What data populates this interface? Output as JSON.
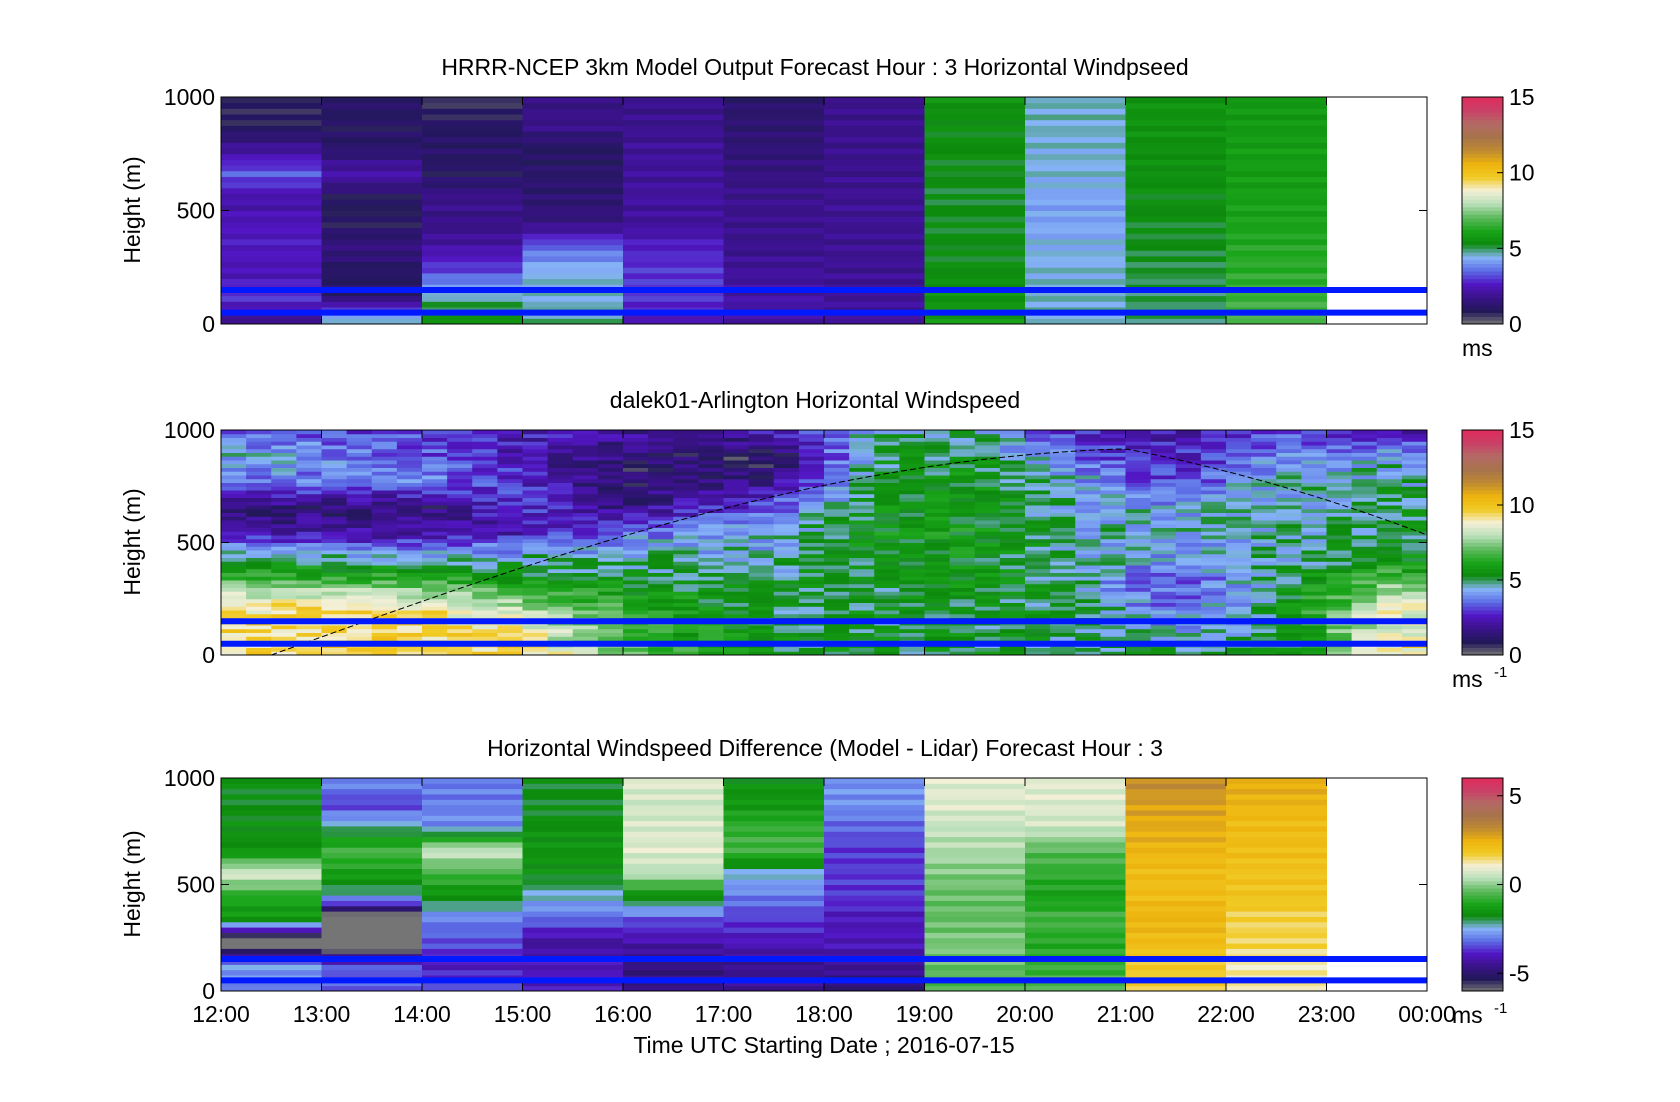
{
  "figure": {
    "xlabel": "Time UTC  Starting Date ; 2016-07-15",
    "x_ticks": [
      "12:00",
      "13:00",
      "14:00",
      "15:00",
      "16:00",
      "17:00",
      "18:00",
      "19:00",
      "20:00",
      "21:00",
      "22:00",
      "23:00",
      "00:00"
    ]
  },
  "chart_data": [
    {
      "type": "heatmap",
      "title": "HRRR-NCEP 3km Model Output   Forecast Hour : 3 Horizontal Windpseed",
      "ylabel": "Height (m)",
      "ylim": [
        0,
        1000
      ],
      "y_ticks": [
        "0",
        "500",
        "1000"
      ],
      "x_range_hours": [
        12,
        24
      ],
      "colorbar": {
        "ticks": [
          "0",
          "5",
          "10",
          "15"
        ],
        "range": [
          0,
          15
        ],
        "unit": "ms",
        "unit_sup": ""
      },
      "horizontal_lines_m": [
        50,
        150
      ],
      "model_hours": [
        12,
        13,
        14,
        15,
        16,
        17,
        18,
        19,
        20,
        21,
        22
      ],
      "model_values": [
        [
          1.8,
          3.0,
          2.4,
          2.6,
          2.5,
          2.2,
          3.4,
          2.0,
          0.8,
          0.8
        ],
        [
          4.8,
          1.2,
          1.0,
          1.6,
          0.9,
          0.9,
          2.3,
          1.2,
          1.0,
          1.2
        ],
        [
          5.6,
          4.7,
          3.2,
          2.2,
          1.7,
          1.8,
          1.0,
          1.2,
          1.0,
          0.6
        ],
        [
          4.8,
          4.5,
          4.5,
          3.5,
          1.6,
          1.3,
          1.2,
          1.0,
          1.8,
          1.6
        ],
        [
          2.4,
          3.0,
          3.0,
          2.7,
          2.0,
          2.1,
          2.0,
          2.0,
          1.8,
          1.8
        ],
        [
          2.2,
          2.2,
          2.0,
          1.8,
          1.8,
          1.8,
          1.6,
          1.4,
          1.3,
          1.2
        ],
        [
          2.0,
          2.0,
          1.9,
          1.9,
          1.9,
          1.9,
          1.8,
          1.8,
          1.8,
          1.8
        ],
        [
          5.8,
          5.6,
          5.4,
          5.3,
          5.3,
          5.2,
          5.3,
          5.4,
          5.4,
          5.6
        ],
        [
          4.6,
          4.6,
          4.5,
          4.4,
          4.2,
          4.2,
          4.5,
          4.5,
          4.6,
          4.6
        ],
        [
          5.0,
          5.0,
          5.1,
          5.2,
          5.3,
          5.4,
          5.5,
          5.5,
          5.6,
          5.6
        ],
        [
          6.8,
          6.6,
          6.4,
          6.3,
          6.1,
          6.0,
          5.9,
          5.9,
          5.8,
          5.8
        ]
      ]
    },
    {
      "type": "heatmap",
      "title": "dalek01-Arlington  Horizontal Windspeed",
      "ylabel": "Height (m)",
      "ylim": [
        0,
        1000
      ],
      "y_ticks": [
        "0",
        "500",
        "1000"
      ],
      "x_range_hours": [
        12,
        24
      ],
      "colorbar": {
        "ticks": [
          "0",
          "5",
          "10",
          "15"
        ],
        "range": [
          0,
          15
        ],
        "unit": "ms",
        "unit_sup": "-1"
      },
      "horizontal_lines_m": [
        50,
        150
      ],
      "lidar_profiles": [
        {
          "hour": 12.0,
          "level": [
            9.5,
            9.4,
            9.2,
            7.0,
            4.8,
            2.2,
            1.4,
            3.8,
            4.6,
            3.6
          ]
        },
        {
          "hour": 14.0,
          "level": [
            9.6,
            9.5,
            9.3,
            6.8,
            4.6,
            2.0,
            1.2,
            3.8,
            3.4,
            3.0
          ]
        },
        {
          "hour": 15.0,
          "level": [
            9.5,
            9.0,
            8.0,
            5.8,
            4.6,
            2.4,
            3.0,
            2.8,
            2.4,
            2.6
          ]
        },
        {
          "hour": 16.0,
          "level": [
            7.0,
            6.6,
            6.4,
            5.4,
            4.6,
            3.6,
            1.6,
            0.9,
            1.4,
            2.0
          ]
        },
        {
          "hour": 17.5,
          "level": [
            5.4,
            5.2,
            5.2,
            5.0,
            4.6,
            4.4,
            3.4,
            1.8,
            0.8,
            2.2
          ]
        },
        {
          "hour": 18.5,
          "level": [
            5.4,
            5.2,
            5.2,
            5.2,
            5.4,
            5.6,
            5.4,
            5.2,
            5.0,
            4.6
          ]
        },
        {
          "hour": 19.5,
          "level": [
            5.2,
            5.2,
            5.4,
            5.6,
            5.6,
            5.8,
            5.6,
            5.5,
            5.4,
            5.0
          ]
        },
        {
          "hour": 20.5,
          "level": [
            5.2,
            5.0,
            5.0,
            4.8,
            4.8,
            4.6,
            4.6,
            4.4,
            3.4,
            2.6
          ]
        },
        {
          "hour": 21.5,
          "level": [
            5.0,
            4.2,
            3.6,
            3.0,
            4.0,
            4.6,
            4.2,
            3.0,
            2.6,
            2.4
          ]
        },
        {
          "hour": 22.5,
          "level": [
            5.2,
            5.0,
            5.0,
            5.0,
            4.6,
            4.6,
            4.4,
            4.6,
            3.8,
            3.2
          ]
        },
        {
          "hour": 23.6,
          "level": [
            9.0,
            8.6,
            8.6,
            7.2,
            5.4,
            5.0,
            5.2,
            4.8,
            4.4,
            2.6
          ]
        },
        {
          "hour": 24.0,
          "level": [
            9.2,
            8.8,
            8.6,
            7.0,
            5.4,
            5.2,
            5.0,
            4.6,
            4.2,
            2.4
          ]
        }
      ]
    },
    {
      "type": "heatmap",
      "title": "Horizontal Windspeed Difference (Model - Lidar) Forecast Hour : 3",
      "ylabel": "Height (m)",
      "ylim": [
        0,
        1000
      ],
      "y_ticks": [
        "0",
        "500",
        "1000"
      ],
      "x_range_hours": [
        12,
        24
      ],
      "colorbar": {
        "ticks": [
          "-5",
          "0",
          "5"
        ],
        "range": [
          -6,
          6
        ],
        "unit": "ms",
        "unit_sup": "-1"
      },
      "horizontal_lines_m": [
        50,
        150
      ],
      "difference_hours": [
        12,
        13,
        14,
        15,
        16,
        17,
        18,
        19,
        20,
        21,
        22
      ],
      "difference_values": [
        [
          -3.0,
          -2.6,
          -7.0,
          -1.5,
          -1.0,
          0.8,
          -1.6,
          -1.6,
          -1.8,
          -1.6
        ],
        [
          -3.2,
          -3.4,
          -7.0,
          -7.0,
          -2.4,
          -1.2,
          -0.6,
          -2.2,
          -3.6,
          -2.8
        ],
        [
          -3.4,
          -4.0,
          -3.4,
          -3.0,
          -1.6,
          -0.6,
          0.6,
          -2.8,
          -3.0,
          -3.0
        ],
        [
          -4.0,
          -4.0,
          -4.4,
          -3.2,
          -2.4,
          -1.6,
          -1.5,
          -1.6,
          -1.8,
          -1.8
        ],
        [
          -4.6,
          -4.8,
          -4.2,
          -3.4,
          -1.6,
          0.4,
          0.8,
          0.7,
          0.6,
          0.8
        ],
        [
          -4.4,
          -4.6,
          -4.0,
          -3.6,
          -3.0,
          -2.4,
          -0.6,
          -0.8,
          -1.4,
          -1.6
        ],
        [
          -5.0,
          -4.4,
          -4.0,
          -4.0,
          -3.6,
          -3.6,
          -3.6,
          -3.2,
          -2.8,
          -2.8
        ],
        [
          -0.6,
          -0.3,
          -0.1,
          -0.3,
          -0.3,
          -0.1,
          0.3,
          0.5,
          0.8,
          0.8
        ],
        [
          -0.4,
          -0.8,
          -1.0,
          -0.6,
          -1.2,
          -0.8,
          -0.4,
          0.6,
          0.8,
          0.8
        ],
        [
          1.8,
          1.8,
          2.2,
          2.4,
          2.2,
          2.2,
          2.4,
          2.6,
          2.8,
          3.2
        ],
        [
          1.2,
          1.2,
          1.6,
          1.6,
          2.0,
          2.0,
          2.2,
          2.2,
          2.4,
          2.6
        ]
      ]
    }
  ],
  "colors": {
    "horizontal_line": "#0019ff",
    "nodata_gray": "#808080",
    "speed_colormap": [
      "#757575",
      "#22185a",
      "#3a1289",
      "#5216c4",
      "#5b6be5",
      "#86b4f7",
      "#0c8a0c",
      "#1aa51a",
      "#5db95d",
      "#b9dfb9",
      "#f4f0d8",
      "#f1ca24",
      "#eeb40e",
      "#bf8a31",
      "#a7734a",
      "#b36a65",
      "#ca4168",
      "#e02c5b"
    ],
    "diff_colormap": [
      "#757575",
      "#22185a",
      "#3a1289",
      "#5216c4",
      "#5b6be5",
      "#86b4f7",
      "#0c8a0c",
      "#1aa51a",
      "#5db95d",
      "#b9dfb9",
      "#f4f0d8",
      "#f1ca24",
      "#eeb40e",
      "#bf8a31",
      "#a7734a",
      "#b36a65",
      "#ca4168",
      "#e02c5b"
    ]
  }
}
